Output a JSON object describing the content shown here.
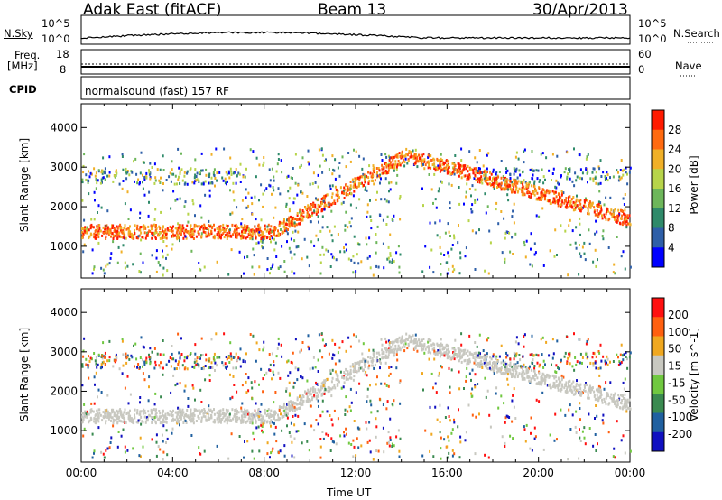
{
  "header": {
    "title": "Adak East (fitACF)",
    "beam": "Beam 13",
    "date": "30/Apr/2013"
  },
  "top_panels": {
    "nsky_label": "N.Sky",
    "nsky_top": "10^5",
    "nsky_bottom": "10^0",
    "nsearch_label": "N.Search",
    "nsearch_top": "10^5",
    "nsearch_bottom": "10^0",
    "freq_label_1": "Freq.",
    "freq_label_2": "[MHz]",
    "freq_top": "18",
    "freq_bottom": "8",
    "nave_label": "Nave",
    "nave_top": "60",
    "nave_bottom": "0",
    "cpid_label": "CPID",
    "cpid_text": "normalsound (fast) 157 RF"
  },
  "chart_data": [
    {
      "type": "heatmap",
      "title": "",
      "ylabel": "Slant Range [km]",
      "yticks": [
        1000,
        2000,
        3000,
        4000
      ],
      "ylim": [
        200,
        4600
      ],
      "colorbar_label": "Power [dB]",
      "colorbar_ticks": [
        "28",
        "24",
        "20",
        "16",
        "12",
        "8",
        "4"
      ],
      "colors": [
        "#0000ff",
        "#2e5fa8",
        "#2f8a6a",
        "#6db65a",
        "#b7d44a",
        "#f0b028",
        "#ff6a10",
        "#ff1a00"
      ]
    },
    {
      "type": "heatmap",
      "title": "",
      "ylabel": "Slant Range [km]",
      "xlabel": "Time UT",
      "xticks": [
        "00:00",
        "04:00",
        "08:00",
        "12:00",
        "16:00",
        "20:00",
        "00:00"
      ],
      "yticks": [
        1000,
        2000,
        3000,
        4000
      ],
      "ylim": [
        200,
        4600
      ],
      "colorbar_label": "Velocity [m s^-1]",
      "colorbar_ticks": [
        "200",
        "100",
        "50",
        "15",
        "-15",
        "-50",
        "-100",
        "-200"
      ],
      "colors": [
        "#1010c0",
        "#2060a0",
        "#3a8a50",
        "#70c840",
        "#c8c8c0",
        "#f0a820",
        "#ff6010",
        "#ff1010"
      ]
    }
  ]
}
